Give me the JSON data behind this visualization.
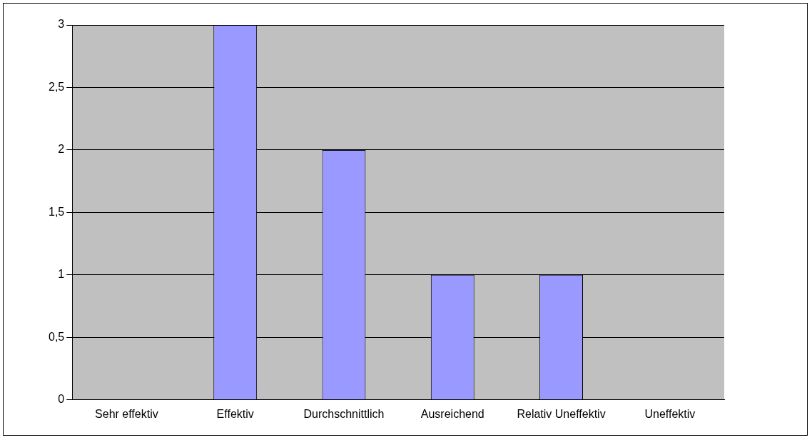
{
  "chart_data": {
    "type": "bar",
    "categories": [
      "Sehr effektiv",
      "Effektiv",
      "Durchschnittlich",
      "Ausreichend",
      "Relativ Uneffektiv",
      "Uneffektiv"
    ],
    "values": [
      0,
      3,
      2,
      1,
      1,
      0
    ],
    "color": "#9999ff",
    "ylim": [
      0,
      3
    ],
    "yticks": [
      0,
      {
        "value": 0.5,
        "label": "0,5"
      },
      1,
      {
        "value": 1.5,
        "label": "1,5"
      },
      2,
      {
        "value": 2.5,
        "label": "2,5"
      },
      3
    ],
    "grid": "y"
  }
}
